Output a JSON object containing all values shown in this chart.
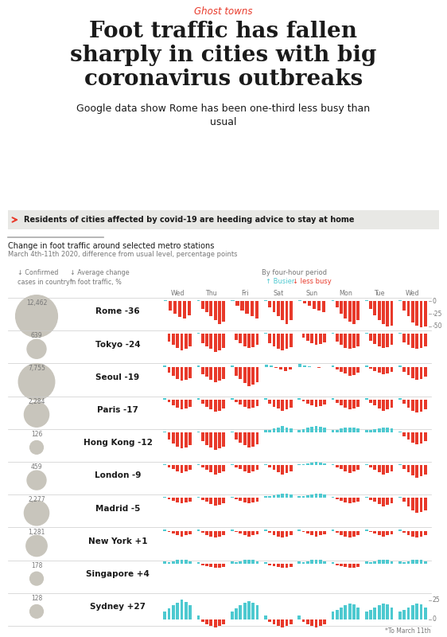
{
  "title_tag": "Ghost towns",
  "title": "Foot traffic has fallen\nsharply in cities with big\ncoronavirus outbreaks",
  "subtitle": "Google data show Rome has been one-third less busy than\nusual",
  "chart_title1": "Change in foot traffic around selected metro stations",
  "chart_title2": "March 4th-11th 2020, difference from usual level, percentage points",
  "days": [
    "Wed",
    "Thu",
    "Fri",
    "Sat",
    "Sun",
    "Mon",
    "Tue",
    "Wed"
  ],
  "cities": [
    {
      "name": "Rome",
      "avg": -36,
      "cases": "12,462",
      "bubble_r": 22
    },
    {
      "name": "Tokyo",
      "avg": -24,
      "cases": "639",
      "bubble_r": 10
    },
    {
      "name": "Seoul",
      "avg": -19,
      "cases": "7,755",
      "bubble_r": 19
    },
    {
      "name": "Paris",
      "avg": -17,
      "cases": "2,284",
      "bubble_r": 13
    },
    {
      "name": "Hong Kong",
      "avg": -12,
      "cases": "126",
      "bubble_r": 7
    },
    {
      "name": "London",
      "avg": -9,
      "cases": "459",
      "bubble_r": 10
    },
    {
      "name": "Madrid",
      "avg": -5,
      "cases": "2,277",
      "bubble_r": 13
    },
    {
      "name": "New York",
      "avg": 1,
      "cases": "1,281",
      "bubble_r": 11
    },
    {
      "name": "Singapore",
      "avg": 4,
      "cases": "178",
      "bubble_r": 7
    },
    {
      "name": "Sydney",
      "avg": 27,
      "cases": "128",
      "bubble_r": 7
    }
  ],
  "city_data": {
    "Rome": [
      [
        1,
        -18,
        -25,
        -32,
        -35,
        -28
      ],
      [
        2,
        -15,
        -22,
        -30,
        -38,
        -45,
        -40
      ],
      [
        1,
        -10,
        -18,
        -25,
        -30,
        -35
      ],
      [
        1,
        -12,
        -22,
        -30,
        -38,
        -45,
        -38
      ],
      [
        1,
        -5,
        -10,
        -15,
        -18,
        -22
      ],
      [
        2,
        -12,
        -25,
        -35,
        -40,
        -45,
        -38
      ],
      [
        1,
        -15,
        -28,
        -38,
        -45,
        -50,
        -48
      ],
      [
        2,
        -18,
        -30,
        -42,
        -48,
        -52,
        -50
      ]
    ],
    "Tokyo": [
      [
        1,
        -15,
        -22,
        -28,
        -32,
        -30,
        -25
      ],
      [
        2,
        -18,
        -25,
        -30,
        -35,
        -32,
        -28
      ],
      [
        1,
        -12,
        -18,
        -24,
        -28,
        -26,
        -22
      ],
      [
        2,
        -18,
        -25,
        -30,
        -32,
        -30,
        -26
      ],
      [
        1,
        -8,
        -14,
        -18,
        -22,
        -20,
        -16
      ],
      [
        2,
        -15,
        -22,
        -28,
        -30,
        -28,
        -24
      ],
      [
        2,
        -14,
        -20,
        -25,
        -28,
        -26,
        -22
      ],
      [
        2,
        -16,
        -22,
        -28,
        -30,
        -28,
        -24
      ]
    ],
    "Seoul": [
      [
        2,
        -12,
        -18,
        -24,
        -28,
        -26,
        -22
      ],
      [
        2,
        -15,
        -20,
        -26,
        -30,
        -28,
        -24
      ],
      [
        2,
        -18,
        -25,
        -32,
        -38,
        -35,
        -30
      ],
      [
        4,
        2,
        -2,
        -5,
        -8,
        -6
      ],
      [
        5,
        3,
        1,
        -1,
        -2,
        -1
      ],
      [
        3,
        -5,
        -10,
        -14,
        -18,
        -16,
        -12
      ],
      [
        3,
        -4,
        -8,
        -12,
        -15,
        -13,
        -10
      ],
      [
        3,
        -10,
        -16,
        -22,
        -26,
        -24,
        -20
      ]
    ],
    "Paris": [
      [
        2,
        -5,
        -12,
        -16,
        -20,
        -18,
        -15
      ],
      [
        2,
        -8,
        -14,
        -20,
        -24,
        -22,
        -18
      ],
      [
        2,
        -5,
        -10,
        -14,
        -18,
        -16,
        -13
      ],
      [
        2,
        -8,
        -14,
        -18,
        -22,
        -20,
        -16
      ],
      [
        2,
        -4,
        -8,
        -12,
        -15,
        -13,
        -10
      ],
      [
        2,
        -6,
        -12,
        -16,
        -20,
        -18,
        -14
      ],
      [
        2,
        -6,
        -12,
        -18,
        -22,
        -20,
        -16
      ],
      [
        2,
        -8,
        -16,
        -22,
        -26,
        -24,
        -20
      ]
    ],
    "Hong Kong": [
      [
        2,
        -15,
        -22,
        -28,
        -32,
        -30,
        -25
      ],
      [
        2,
        -18,
        -25,
        -30,
        -35,
        -32,
        -28
      ],
      [
        2,
        -15,
        -20,
        -26,
        -30,
        -28,
        -24
      ],
      [
        4,
        5,
        8,
        10,
        12,
        10,
        8
      ],
      [
        5,
        6,
        9,
        11,
        13,
        11,
        9
      ],
      [
        4,
        4,
        7,
        9,
        10,
        9,
        7
      ],
      [
        4,
        4,
        6,
        8,
        10,
        9,
        7
      ],
      [
        2,
        -8,
        -14,
        -20,
        -24,
        -22,
        -18
      ]
    ],
    "London": [
      [
        2,
        -4,
        -8,
        -12,
        -15,
        -13,
        -10
      ],
      [
        2,
        -5,
        -10,
        -14,
        -18,
        -16,
        -13
      ],
      [
        2,
        -4,
        -8,
        -12,
        -15,
        -13,
        -10
      ],
      [
        2,
        -5,
        -10,
        -14,
        -18,
        -16,
        -13
      ],
      [
        2,
        2,
        4,
        5,
        6,
        5,
        4
      ],
      [
        2,
        -4,
        -8,
        -12,
        -15,
        -13,
        -10
      ],
      [
        2,
        -5,
        -10,
        -14,
        -18,
        -16,
        -13
      ],
      [
        2,
        -8,
        -14,
        -20,
        -25,
        -22,
        -18
      ]
    ],
    "Madrid": [
      [
        2,
        -3,
        -6,
        -9,
        -11,
        -9,
        -7
      ],
      [
        2,
        -4,
        -8,
        -12,
        -15,
        -13,
        -10
      ],
      [
        2,
        -3,
        -6,
        -9,
        -11,
        -9,
        -7
      ],
      [
        3,
        3,
        5,
        7,
        9,
        8,
        6
      ],
      [
        3,
        3,
        5,
        7,
        9,
        8,
        6
      ],
      [
        2,
        -3,
        -6,
        -9,
        -11,
        -9,
        -7
      ],
      [
        2,
        -4,
        -8,
        -12,
        -16,
        -14,
        -11
      ],
      [
        2,
        -8,
        -16,
        -24,
        -30,
        -28,
        -24
      ]
    ],
    "New York": [
      [
        2,
        -3,
        -6,
        -9,
        -11,
        -9,
        -7
      ],
      [
        2,
        -4,
        -8,
        -12,
        -14,
        -12,
        -9
      ],
      [
        2,
        -3,
        -6,
        -9,
        -11,
        -9,
        -7
      ],
      [
        2,
        -4,
        -8,
        -12,
        -14,
        -12,
        -9
      ],
      [
        2,
        -3,
        -6,
        -9,
        -11,
        -9,
        -7
      ],
      [
        2,
        -4,
        -8,
        -12,
        -14,
        -12,
        -9
      ],
      [
        2,
        -3,
        -6,
        -9,
        -11,
        -9,
        -7
      ],
      [
        2,
        -4,
        -8,
        -12,
        -14,
        -12,
        -9
      ]
    ],
    "Singapore": [
      [
        4,
        3,
        5,
        7,
        8,
        7,
        5
      ],
      [
        3,
        -3,
        -5,
        -7,
        -9,
        -8,
        -6
      ],
      [
        4,
        3,
        5,
        7,
        8,
        7,
        5
      ],
      [
        3,
        -3,
        -5,
        -7,
        -9,
        -8,
        -6
      ],
      [
        4,
        3,
        5,
        7,
        8,
        7,
        5
      ],
      [
        3,
        -3,
        -5,
        -7,
        -9,
        -8,
        -6
      ],
      [
        4,
        3,
        5,
        7,
        8,
        7,
        5
      ],
      [
        4,
        3,
        5,
        7,
        8,
        7,
        5
      ]
    ],
    "Sydney": [
      [
        10,
        14,
        18,
        22,
        26,
        23,
        18
      ],
      [
        5,
        -3,
        -6,
        -9,
        -11,
        -9,
        -7
      ],
      [
        10,
        14,
        18,
        22,
        24,
        22,
        18
      ],
      [
        5,
        -3,
        -6,
        -9,
        -11,
        -9,
        -7
      ],
      [
        5,
        -3,
        -6,
        -9,
        -11,
        -9,
        -7
      ],
      [
        10,
        12,
        15,
        18,
        21,
        19,
        15
      ],
      [
        10,
        12,
        15,
        18,
        21,
        19,
        15
      ],
      [
        10,
        12,
        15,
        18,
        21,
        19,
        15
      ]
    ]
  },
  "colors": {
    "red": "#e8392a",
    "cyan": "#4dc9d0",
    "gray_bubble": "#c8c5bc",
    "title_tag": "#e8392a",
    "callout_bg": "#e8e8e5",
    "callout_arrow": "#e8392a",
    "text_dark": "#1a1a1a",
    "text_gray": "#777777",
    "separator": "#cccccc"
  },
  "footnote": "*To March 11th"
}
